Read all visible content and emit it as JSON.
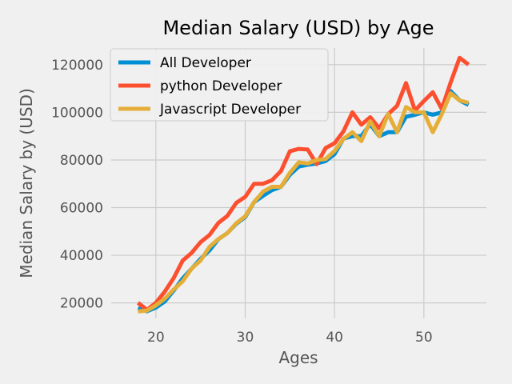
{
  "chart_data": {
    "type": "line",
    "title": "Median Salary (USD) by Age",
    "xlabel": "Ages",
    "ylabel": "Median Salary by (USD)",
    "xlim": [
      15,
      57
    ],
    "ylim": [
      13500,
      127000
    ],
    "xticks": [
      20,
      30,
      40,
      50
    ],
    "yticks": [
      20000,
      40000,
      60000,
      80000,
      100000,
      120000
    ],
    "grid": true,
    "legend": "top-left",
    "x": [
      18,
      19,
      20,
      21,
      22,
      23,
      24,
      25,
      26,
      27,
      28,
      29,
      30,
      31,
      32,
      33,
      34,
      35,
      36,
      37,
      38,
      39,
      40,
      41,
      42,
      43,
      44,
      45,
      46,
      47,
      48,
      49,
      50,
      51,
      52,
      53,
      54,
      55
    ],
    "series": [
      {
        "name": "All Developer",
        "color": "#008fd5",
        "values": [
          17784,
          16500,
          18012,
          20628,
          25206,
          30252,
          34368,
          38496,
          42000,
          46752,
          49320,
          53200,
          56000,
          62316,
          64928,
          67317,
          68748,
          73752,
          77232,
          78000,
          78508,
          79536,
          82488,
          88935,
          90000,
          90056,
          95000,
          90000,
          91633,
          91660,
          98150,
          98964,
          100000,
          98988,
          100000,
          108923,
          105000,
          103117
        ]
      },
      {
        "name": "python Developer",
        "color": "#fc4f30",
        "values": [
          20046,
          17100,
          20000,
          24744,
          30500,
          37732,
          41000,
          45500,
          48500,
          53600,
          56500,
          62000,
          64500,
          70000,
          70000,
          71496,
          75370,
          83640,
          84666,
          84392,
          78254,
          85000,
          87038,
          91991,
          100000,
          94796,
          97962,
          93302,
          99240,
          102736,
          112285,
          100771,
          104708,
          108423,
          101407,
          112542,
          122870,
          120000
        ]
      },
      {
        "name": "Javascript Developer",
        "color": "#e5ae38",
        "values": [
          16446,
          16791,
          18942,
          21780,
          25704,
          29000,
          34372,
          37810,
          43515,
          46823,
          49293,
          53437,
          56373,
          62375,
          66674,
          68745,
          68746,
          74583,
          79000,
          78508,
          79996,
          80403,
          83820,
          88833,
          91660,
          87892,
          96243,
          90000,
          99313,
          91660,
          102264,
          100000,
          100000,
          91660,
          99240,
          108000,
          105000,
          104000
        ]
      }
    ]
  }
}
